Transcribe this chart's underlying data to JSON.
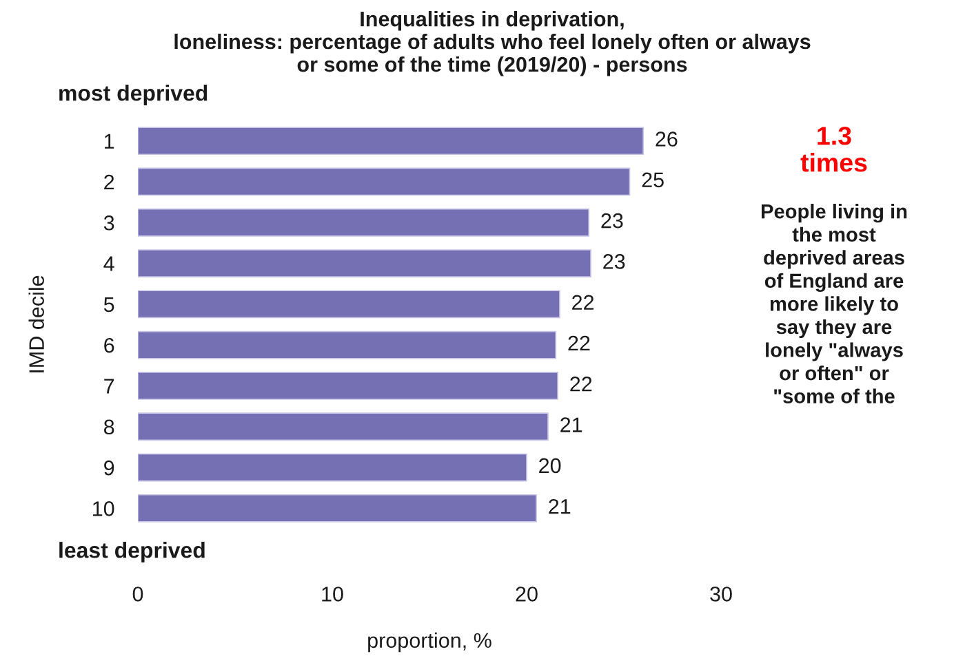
{
  "chart_data": {
    "type": "bar",
    "orientation": "horizontal",
    "title": "Inequalities in deprivation,\nloneliness: percentage of adults who feel lonely often or always\nor some of the time (2019/20) - persons",
    "xlabel": "proportion, %",
    "ylabel": "IMD decile",
    "categories": [
      "1",
      "2",
      "3",
      "4",
      "5",
      "6",
      "7",
      "8",
      "9",
      "10"
    ],
    "values": [
      26.0,
      25.3,
      23.2,
      23.3,
      21.7,
      21.5,
      21.6,
      21.1,
      20.0,
      20.5
    ],
    "value_labels": [
      "26",
      "25",
      "23",
      "23",
      "22",
      "22",
      "22",
      "21",
      "20",
      "21"
    ],
    "color": "#7570b3",
    "xlim": [
      0,
      30
    ],
    "xticks": [
      0,
      10,
      20,
      30
    ],
    "annotations": [
      "most deprived",
      "least deprived",
      "1.3\ntimes",
      "People living in\nthe most\ndeprived areas\nof England are\nmore likely to\nsay they are\nlonely \"always\nor often\" or\n\"some of the"
    ]
  }
}
